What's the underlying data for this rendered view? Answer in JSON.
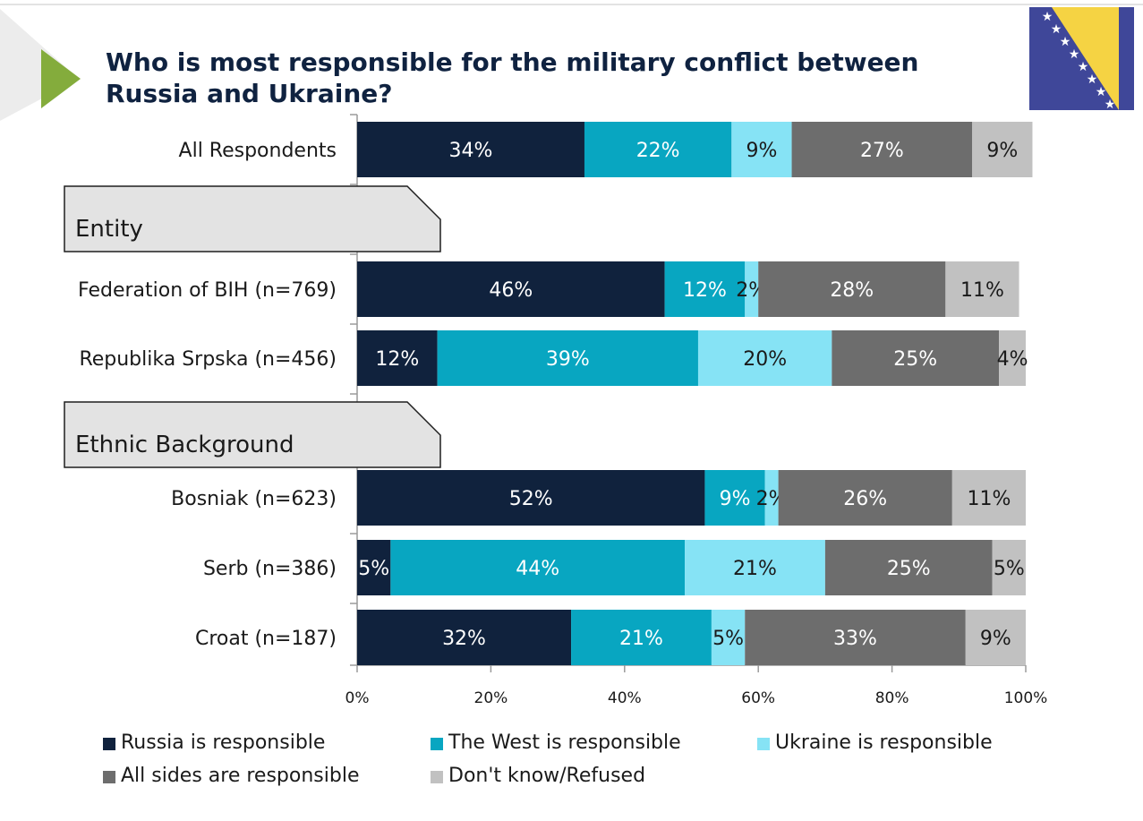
{
  "title": "Who is most responsible for the military conflict between Russia and Ukraine?",
  "sections": [
    "Entity",
    "Ethnic Background"
  ],
  "colors": {
    "russia": "#10223d",
    "west": "#08a6c1",
    "ukraine": "#86e3f5",
    "all_sides": "#6d6d6d",
    "dont_know": "#c1c1c1",
    "title": "#0f2240",
    "accent_arrow": "#84ac3c"
  },
  "icons": {
    "arrow": "green-triangle-arrow-icon",
    "flag": "bosnia-herzegovina-flag-icon"
  },
  "chart_data": {
    "type": "bar",
    "orientation": "horizontal",
    "stacked": true,
    "categories": [
      "All Respondents",
      "Federation of BIH (n=769)",
      "Republika Srpska (n=456)",
      "Bosniak (n=623)",
      "Serb (n=386)",
      "Croat (n=187)"
    ],
    "series": [
      {
        "name": "Russia is responsible",
        "values": [
          34,
          46,
          12,
          52,
          5,
          32
        ]
      },
      {
        "name": "The West is responsible",
        "values": [
          22,
          12,
          39,
          9,
          44,
          21
        ]
      },
      {
        "name": "Ukraine is responsible",
        "values": [
          9,
          2,
          20,
          2,
          21,
          5
        ]
      },
      {
        "name": "All sides are responsible",
        "values": [
          27,
          28,
          25,
          26,
          25,
          33
        ]
      },
      {
        "name": "Don't know/Refused",
        "values": [
          9,
          11,
          4,
          11,
          5,
          9
        ]
      }
    ],
    "xlim": [
      0,
      100
    ],
    "xticks": [
      "0%",
      "20%",
      "40%",
      "60%",
      "80%",
      "100%"
    ],
    "value_suffix": "%",
    "legend_position": "bottom",
    "grid": false
  }
}
